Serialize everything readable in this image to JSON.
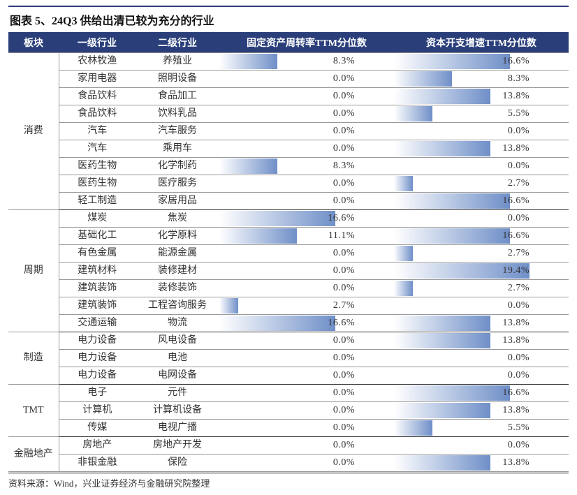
{
  "title": "图表 5、24Q3 供给出清已较为充分的行业",
  "source": "资料来源：Wind，兴业证券经济与金融研究院整理",
  "columns": {
    "c1": "板块",
    "c2": "一级行业",
    "c3": "二级行业",
    "c4": "固定资产周转率TTM分位数",
    "c5": "资本开支增速TTM分位数"
  },
  "col_widths": {
    "c1": 72,
    "c2": 110,
    "c3": 120,
    "c4": 250,
    "c5": 250
  },
  "style": {
    "header_bg": "#2a3f7a",
    "header_fg": "#ffffff",
    "bar_grad_from": "#ffffff",
    "bar_grad_to": "#6f8fc8",
    "border_color": "#999999"
  },
  "bar_scale_max": 25,
  "groups": [
    {
      "name": "消费",
      "rows": [
        {
          "l1": "农林牧渔",
          "l2": "养殖业",
          "v1": 8.3,
          "v2": 16.6
        },
        {
          "l1": "家用电器",
          "l2": "照明设备",
          "v1": 0.0,
          "v2": 8.3
        },
        {
          "l1": "食品饮料",
          "l2": "食品加工",
          "v1": 0.0,
          "v2": 13.8
        },
        {
          "l1": "食品饮料",
          "l2": "饮料乳品",
          "v1": 0.0,
          "v2": 5.5
        },
        {
          "l1": "汽车",
          "l2": "汽车服务",
          "v1": 0.0,
          "v2": 0.0
        },
        {
          "l1": "汽车",
          "l2": "乘用车",
          "v1": 0.0,
          "v2": 13.8
        },
        {
          "l1": "医药生物",
          "l2": "化学制药",
          "v1": 8.3,
          "v2": 0.0
        },
        {
          "l1": "医药生物",
          "l2": "医疗服务",
          "v1": 0.0,
          "v2": 2.7
        },
        {
          "l1": "轻工制造",
          "l2": "家居用品",
          "v1": 0.0,
          "v2": 16.6
        }
      ]
    },
    {
      "name": "周期",
      "rows": [
        {
          "l1": "煤炭",
          "l2": "焦炭",
          "v1": 16.6,
          "v2": 0.0
        },
        {
          "l1": "基础化工",
          "l2": "化学原料",
          "v1": 11.1,
          "v2": 16.6
        },
        {
          "l1": "有色金属",
          "l2": "能源金属",
          "v1": 0.0,
          "v2": 2.7
        },
        {
          "l1": "建筑材料",
          "l2": "装修建材",
          "v1": 0.0,
          "v2": 19.4
        },
        {
          "l1": "建筑装饰",
          "l2": "装修装饰",
          "v1": 0.0,
          "v2": 2.7
        },
        {
          "l1": "建筑装饰",
          "l2": "工程咨询服务",
          "v1": 2.7,
          "v2": 0.0
        },
        {
          "l1": "交通运输",
          "l2": "物流",
          "v1": 16.6,
          "v2": 13.8
        }
      ]
    },
    {
      "name": "制造",
      "rows": [
        {
          "l1": "电力设备",
          "l2": "风电设备",
          "v1": 0.0,
          "v2": 13.8
        },
        {
          "l1": "电力设备",
          "l2": "电池",
          "v1": 0.0,
          "v2": 0.0
        },
        {
          "l1": "电力设备",
          "l2": "电网设备",
          "v1": 0.0,
          "v2": 0.0
        }
      ]
    },
    {
      "name": "TMT",
      "rows": [
        {
          "l1": "电子",
          "l2": "元件",
          "v1": 0.0,
          "v2": 16.6
        },
        {
          "l1": "计算机",
          "l2": "计算机设备",
          "v1": 0.0,
          "v2": 13.8
        },
        {
          "l1": "传媒",
          "l2": "电视广播",
          "v1": 0.0,
          "v2": 5.5
        }
      ]
    },
    {
      "name": "金融地产",
      "rows": [
        {
          "l1": "房地产",
          "l2": "房地产开发",
          "v1": 0.0,
          "v2": 0.0
        },
        {
          "l1": "非银金融",
          "l2": "保险",
          "v1": 0.0,
          "v2": 13.8
        }
      ]
    }
  ]
}
